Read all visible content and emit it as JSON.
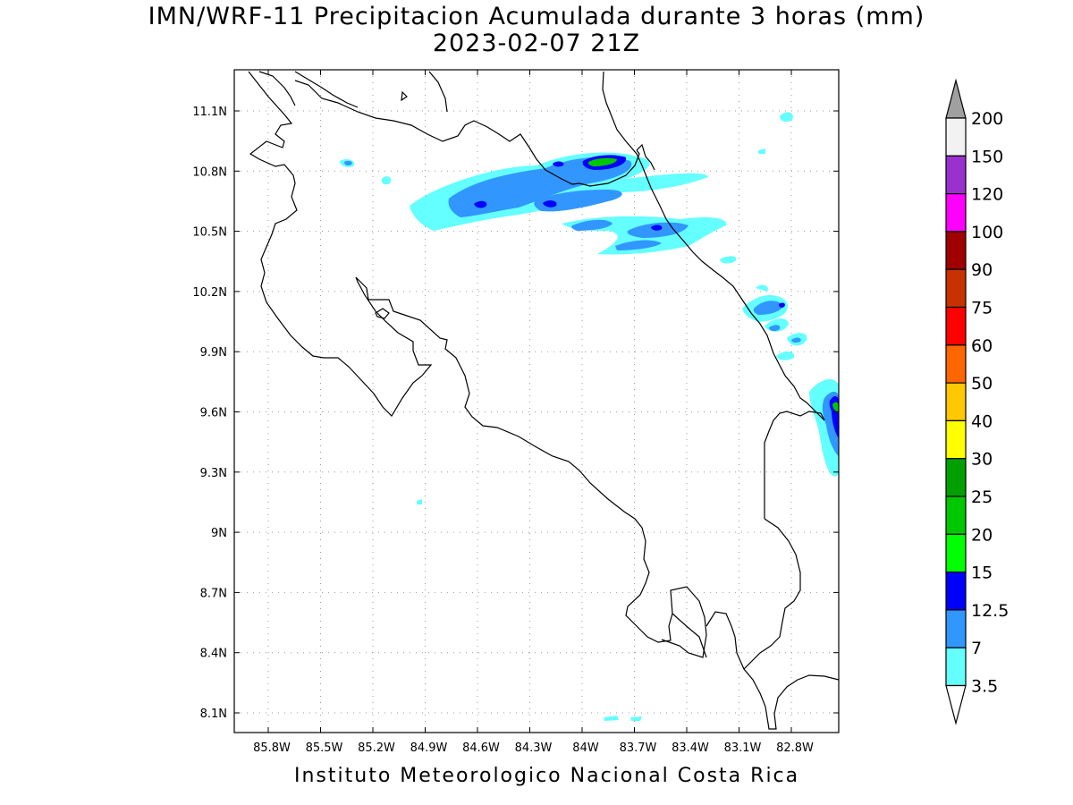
{
  "title": {
    "line1": "IMN/WRF-11 Precipitacion Acumulada durante 3 horas (mm)",
    "line2": "2023-02-07 21Z"
  },
  "credit": "Instituto Meteorologico Nacional Costa Rica",
  "map": {
    "lon_labels": [
      "85.8W",
      "85.5W",
      "85.2W",
      "84.9W",
      "84.6W",
      "84.3W",
      "84W",
      "83.7W",
      "83.4W",
      "83.1W",
      "82.8W"
    ],
    "lat_labels": [
      "11.1N",
      "10.8N",
      "10.5N",
      "10.2N",
      "9.9N",
      "9.6N",
      "9.3N",
      "9N",
      "8.7N",
      "8.4N",
      "8.1N"
    ],
    "grid": true
  },
  "colorbar": {
    "labels": [
      "200",
      "150",
      "120",
      "100",
      "90",
      "75",
      "60",
      "50",
      "40",
      "30",
      "25",
      "20",
      "15",
      "12.5",
      "7",
      "3.5"
    ],
    "colors": [
      "#f2f2f2",
      "#9b30d0",
      "#ff00ff",
      "#a00000",
      "#c83200",
      "#ff0000",
      "#ff6600",
      "#ffc800",
      "#ffff00",
      "#00a000",
      "#00c800",
      "#00ff00",
      "#0000ff",
      "#3296ff",
      "#64ffff"
    ],
    "over_color": "#a0a0a0",
    "under_color": "#ffffff"
  }
}
